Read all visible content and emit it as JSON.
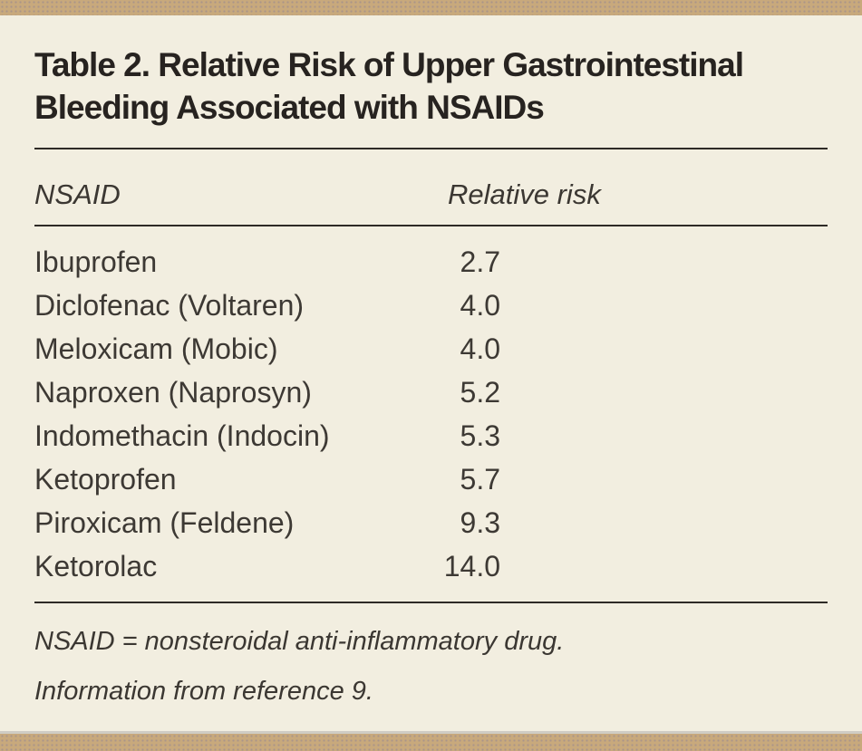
{
  "page": {
    "title_lines": [
      "Table 2. Relative Risk of Upper Gastrointestinal",
      "Bleeding Associated with NSAIDs"
    ]
  },
  "table": {
    "columns": [
      "NSAID",
      "Relative risk"
    ],
    "rows": [
      {
        "nsaid": "Ibuprofen",
        "risk": "2.7"
      },
      {
        "nsaid": "Diclofenac (Voltaren)",
        "risk": "4.0"
      },
      {
        "nsaid": "Meloxicam (Mobic)",
        "risk": "4.0"
      },
      {
        "nsaid": "Naproxen (Naprosyn)",
        "risk": "5.2"
      },
      {
        "nsaid": "Indomethacin (Indocin)",
        "risk": "5.3"
      },
      {
        "nsaid": "Ketoprofen",
        "risk": "5.7"
      },
      {
        "nsaid": "Piroxicam (Feldene)",
        "risk": "9.3"
      },
      {
        "nsaid": "Ketorolac",
        "risk": "14.0"
      }
    ],
    "footnotes": [
      "NSAID = nonsteroidal anti-inflammatory drug.",
      "Information from reference 9."
    ]
  },
  "colors": {
    "background": "#f2eee0",
    "accent_bar": "#c8a97c",
    "title_text": "#272320",
    "body_text": "#3d3934",
    "rule": "#2e2a26"
  }
}
